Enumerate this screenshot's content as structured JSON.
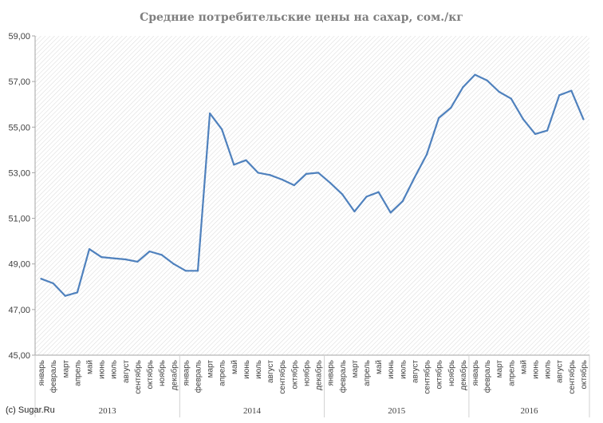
{
  "chart_data": {
    "type": "line",
    "title": "Средние потребительские цены на сахар, сом./кг",
    "ylim": [
      45,
      59
    ],
    "yticks": [
      "45,00",
      "47,00",
      "49,00",
      "51,00",
      "53,00",
      "55,00",
      "57,00",
      "59,00"
    ],
    "ytick_values": [
      45,
      47,
      49,
      51,
      53,
      55,
      57,
      59
    ],
    "grid": "diagonal hatch fill in plot area",
    "legend": "none",
    "years": [
      {
        "label": "2013",
        "months": 12
      },
      {
        "label": "2014",
        "months": 12
      },
      {
        "label": "2015",
        "months": 12
      },
      {
        "label": "2016",
        "months": 10
      }
    ],
    "months": [
      "январь",
      "февраль",
      "март",
      "апрель",
      "май",
      "июнь",
      "июль",
      "август",
      "сентябрь",
      "октябрь",
      "ноябрь",
      "декабрь"
    ],
    "categories": [
      "январь",
      "февраль",
      "март",
      "апрель",
      "май",
      "июнь",
      "июль",
      "август",
      "сентябрь",
      "октябрь",
      "ноябрь",
      "декабрь",
      "январь",
      "февраль",
      "март",
      "апрель",
      "май",
      "июнь",
      "июль",
      "август",
      "сентябрь",
      "октябрь",
      "ноябрь",
      "декабрь",
      "январь",
      "февраль",
      "март",
      "апрель",
      "май",
      "июнь",
      "июль",
      "август",
      "сентябрь",
      "октябрь",
      "ноябрь",
      "декабрь",
      "январь",
      "февраль",
      "март",
      "апрель",
      "май",
      "июнь",
      "июль",
      "август",
      "сентябрь",
      "октябрь"
    ],
    "series": [
      {
        "color": "#4f81bd",
        "values": [
          48.35,
          48.15,
          47.6,
          47.75,
          49.65,
          49.3,
          49.25,
          49.2,
          49.1,
          49.55,
          49.4,
          49.0,
          48.7,
          48.7,
          55.6,
          54.9,
          53.35,
          53.55,
          53.0,
          52.9,
          52.7,
          52.45,
          52.95,
          53.0,
          52.55,
          52.05,
          51.3,
          51.95,
          52.15,
          51.25,
          51.75,
          52.8,
          53.8,
          55.4,
          55.85,
          56.75,
          57.3,
          57.05,
          56.55,
          56.25,
          55.35,
          54.7,
          54.85,
          56.4,
          56.6,
          55.35
        ]
      }
    ]
  },
  "footer": {
    "credit": "(c) Sugar.Ru"
  }
}
